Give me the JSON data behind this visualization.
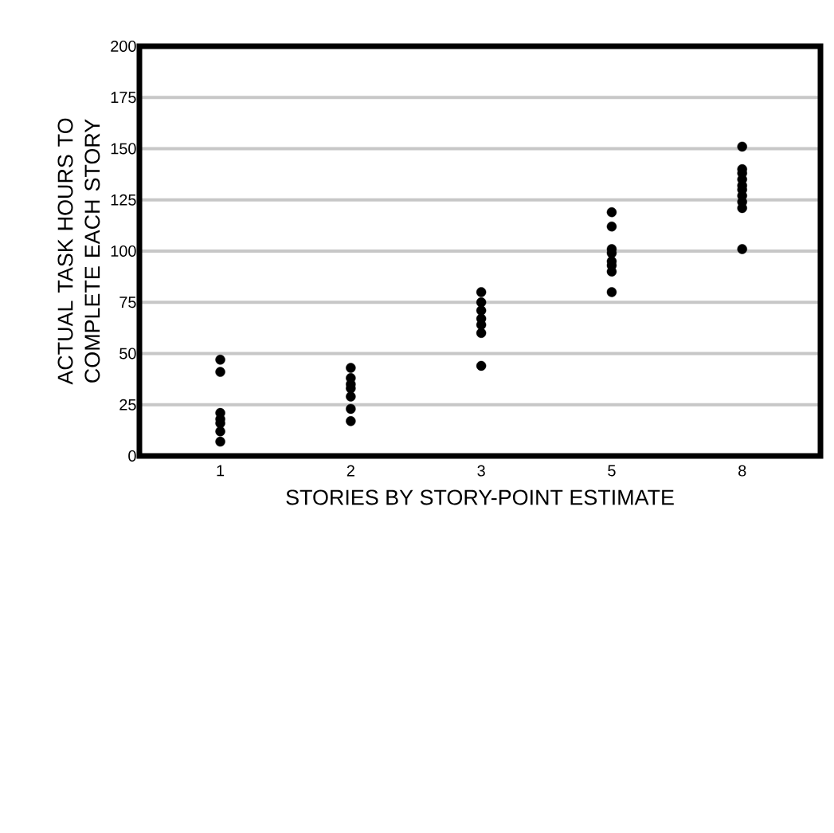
{
  "chart_data": {
    "type": "scatter",
    "xlabel": "STORIES BY STORY-POINT ESTIMATE",
    "ylabel": "ACTUAL TASK HOURS TO COMPLETE EACH STORY",
    "categories": [
      "1",
      "2",
      "3",
      "5",
      "8"
    ],
    "series": [
      {
        "color": "#000000",
        "x": [
          "1",
          "1",
          "1",
          "1",
          "1",
          "1",
          "1",
          "2",
          "2",
          "2",
          "2",
          "2",
          "2",
          "2",
          "3",
          "3",
          "3",
          "3",
          "3",
          "3",
          "3",
          "5",
          "5",
          "5",
          "5",
          "5",
          "5",
          "5",
          "5",
          "8",
          "8",
          "8",
          "8",
          "8",
          "8",
          "8",
          "8",
          "8",
          "8"
        ],
        "values": [
          47,
          41,
          21,
          18,
          16,
          12,
          7,
          43,
          38,
          35,
          33,
          29,
          23,
          17,
          80,
          75,
          71,
          67,
          64,
          60,
          44,
          119,
          112,
          101,
          99,
          95,
          93,
          90,
          80,
          151,
          140,
          138,
          135,
          132,
          130,
          127,
          124,
          121,
          101
        ]
      }
    ],
    "ylim": [
      0,
      200
    ],
    "yticks": [
      0,
      25,
      50,
      75,
      100,
      125,
      150,
      175,
      200
    ],
    "grid": "y"
  }
}
